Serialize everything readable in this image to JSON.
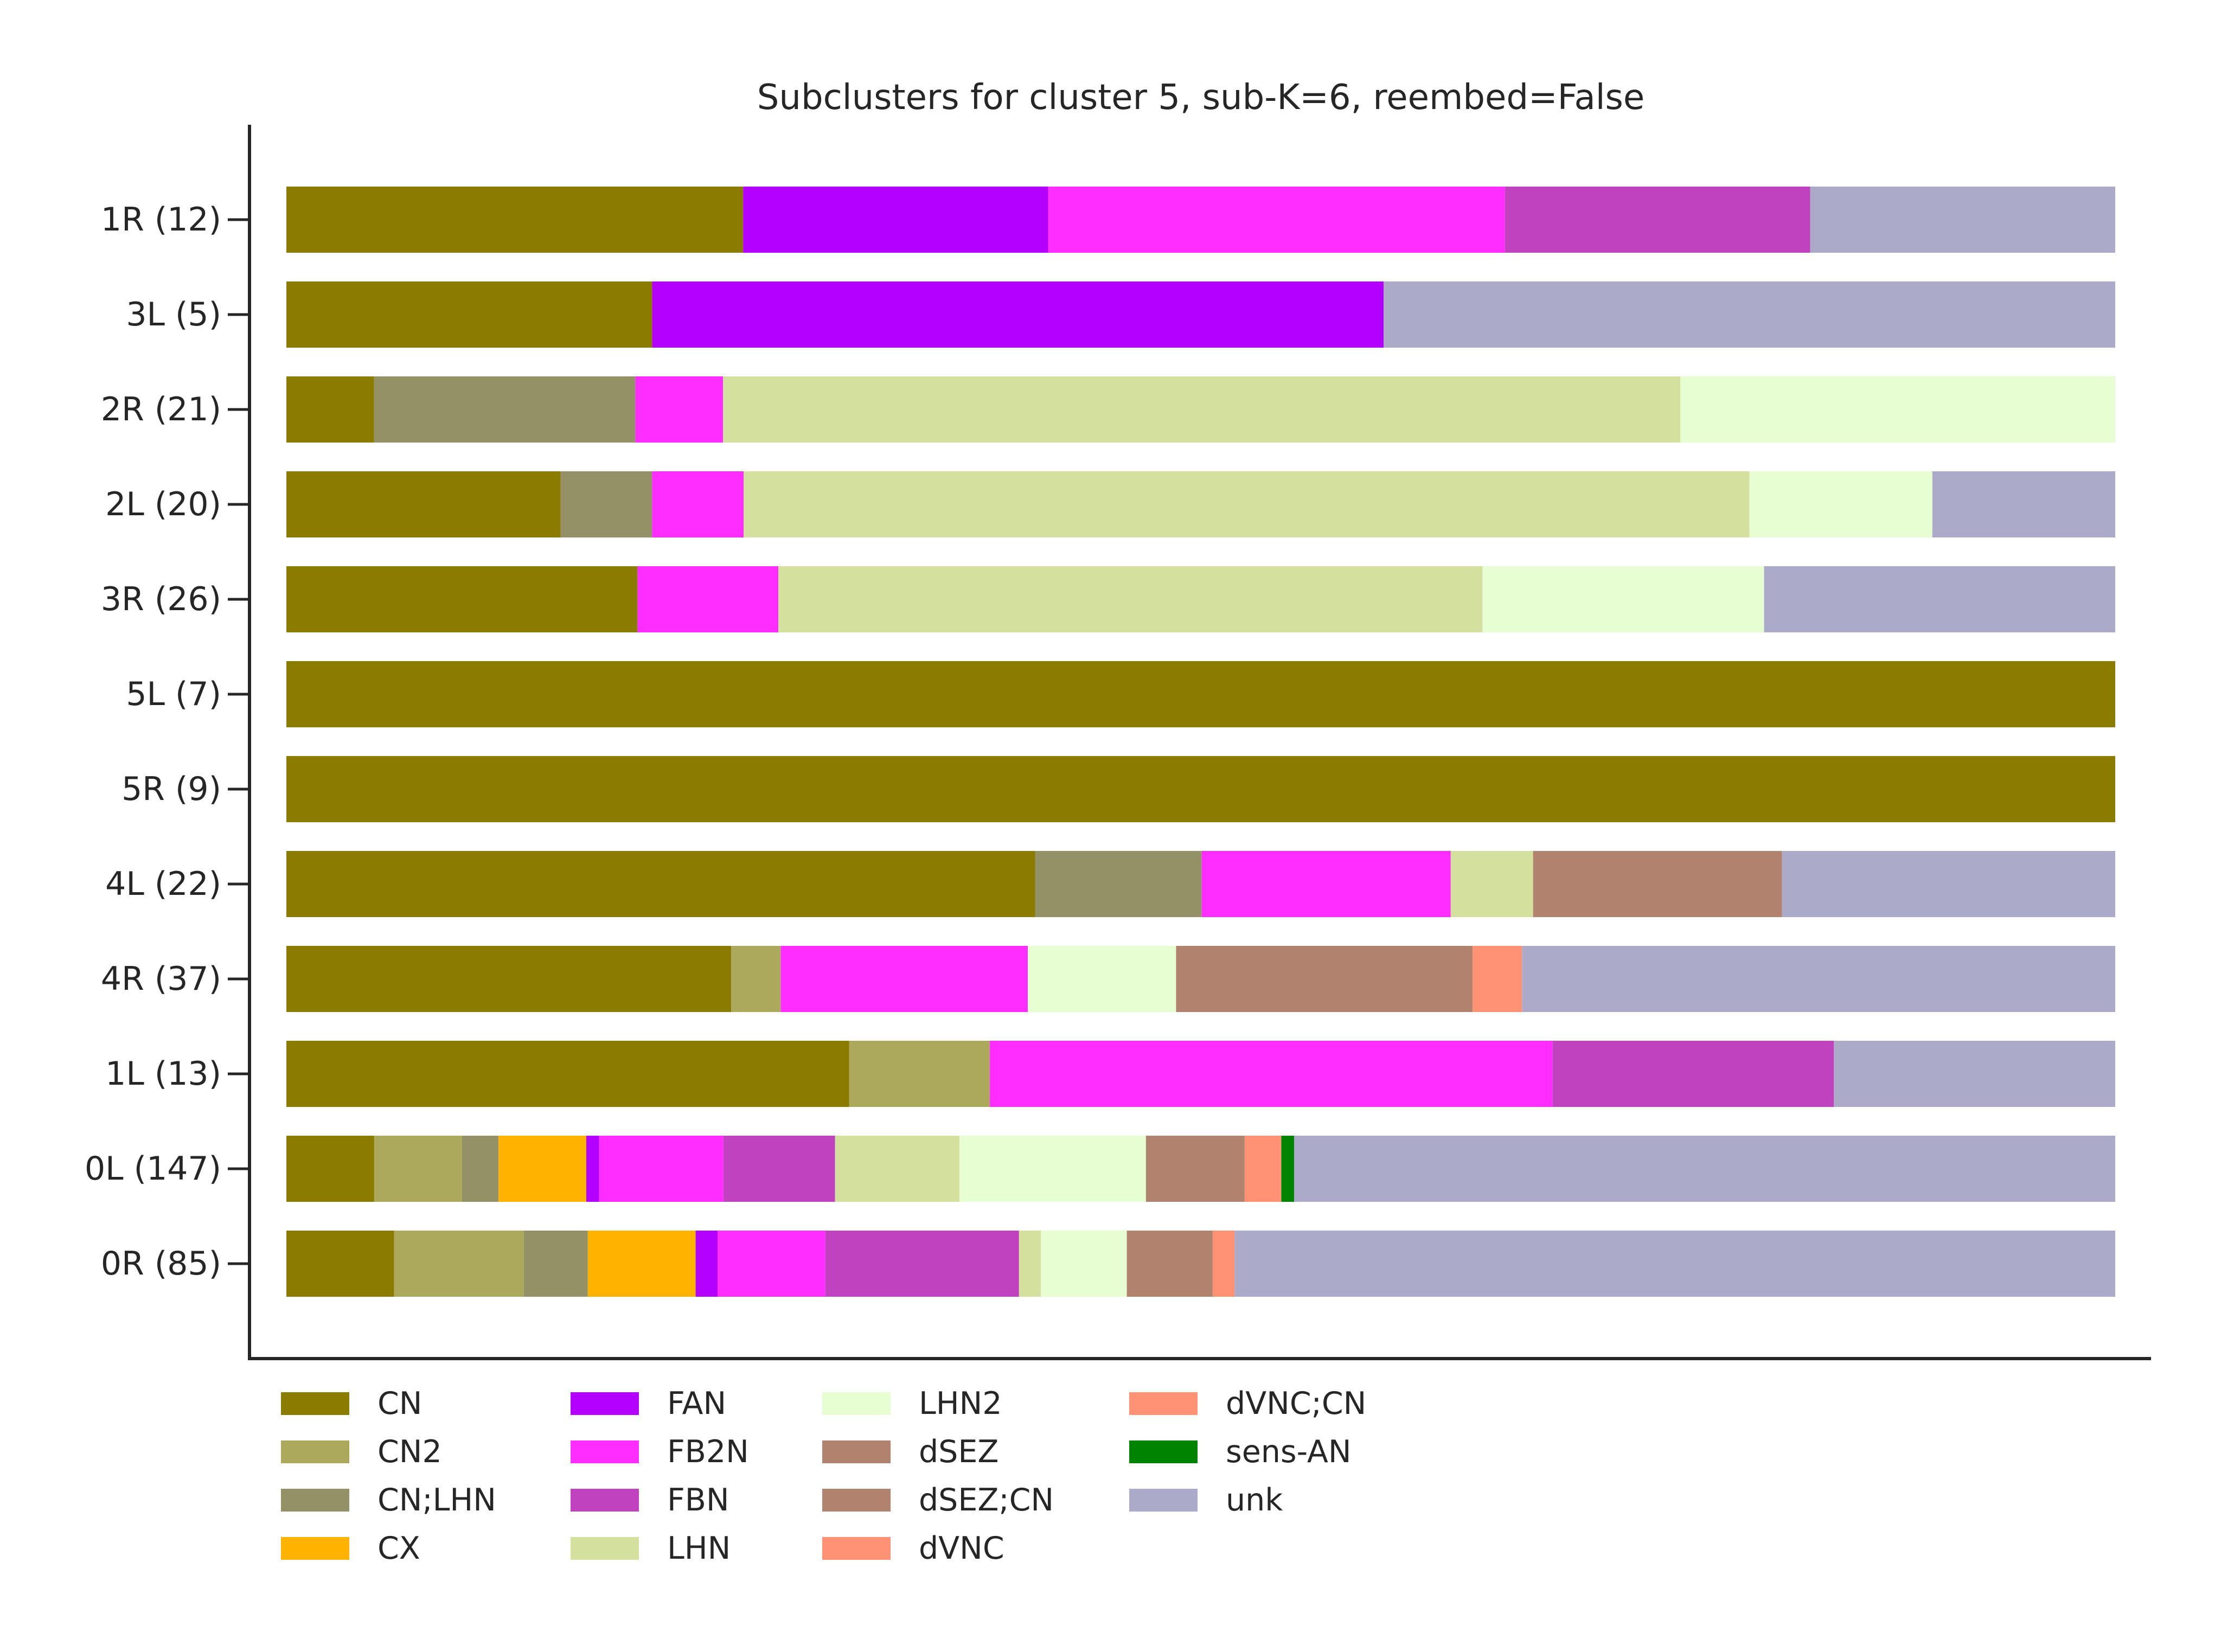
{
  "chart_data": {
    "type": "bar",
    "orientation": "horizontal",
    "stacked": true,
    "normalized": true,
    "title": "Subclusters for cluster 5, sub-K=6, reembed=False",
    "xlabel": "",
    "ylabel": "",
    "xlim": [
      0,
      1
    ],
    "grid": false,
    "legend_position": "bottom",
    "legend_columns": 4,
    "categories": [
      "1R (12)",
      "3L (5)",
      "2R (21)",
      "2L (20)",
      "3R (26)",
      "5L (7)",
      "5R (9)",
      "4L (22)",
      "4R (37)",
      "1L (13)",
      "0L (147)",
      "0R (85)"
    ],
    "series": [
      {
        "name": "CN",
        "color": "#8b7b00",
        "values": [
          0.25,
          0.2,
          0.048,
          0.15,
          0.192,
          1.0,
          1.0,
          0.409,
          0.243,
          0.308,
          0.048,
          0.059
        ]
      },
      {
        "name": "CN2",
        "color": "#aca85c",
        "values": [
          0,
          0,
          0,
          0,
          0,
          0,
          0,
          0,
          0.027,
          0.077,
          0.048,
          0.071
        ]
      },
      {
        "name": "CN;LHN",
        "color": "#959166",
        "values": [
          0,
          0,
          0.143,
          0.05,
          0,
          0,
          0,
          0.091,
          0,
          0,
          0.02,
          0.035
        ]
      },
      {
        "name": "CX",
        "color": "#ffb300",
        "values": [
          0,
          0,
          0,
          0,
          0,
          0,
          0,
          0,
          0,
          0,
          0.048,
          0.059
        ]
      },
      {
        "name": "FAN",
        "color": "#b300ff",
        "values": [
          0.167,
          0.4,
          0,
          0,
          0,
          0,
          0,
          0,
          0,
          0,
          0.007,
          0.012
        ]
      },
      {
        "name": "FB2N",
        "color": "#ff2dff",
        "values": [
          0.25,
          0,
          0.048,
          0.05,
          0.077,
          0,
          0,
          0.136,
          0.135,
          0.308,
          0.068,
          0.059
        ]
      },
      {
        "name": "FBN",
        "color": "#c142bf",
        "values": [
          0.167,
          0,
          0,
          0,
          0,
          0,
          0,
          0,
          0,
          0.154,
          0.061,
          0.106
        ]
      },
      {
        "name": "LHN",
        "color": "#d4e19e",
        "values": [
          0,
          0,
          0.524,
          0.55,
          0.385,
          0,
          0,
          0.045,
          0,
          0,
          0.068,
          0.012
        ]
      },
      {
        "name": "LHN2",
        "color": "#e7fdd2",
        "values": [
          0,
          0,
          0.238,
          0.1,
          0.154,
          0,
          0,
          0,
          0.081,
          0,
          0.102,
          0.047
        ]
      },
      {
        "name": "dSEZ",
        "color": "#b1836f",
        "values": [
          0,
          0,
          0,
          0,
          0,
          0,
          0,
          0.136,
          0.162,
          0,
          0.054,
          0.047
        ]
      },
      {
        "name": "dSEZ;CN",
        "color": "#b1836f",
        "values": [
          0,
          0,
          0,
          0,
          0,
          0,
          0,
          0,
          0,
          0,
          0,
          0
        ]
      },
      {
        "name": "dVNC",
        "color": "#ff9174",
        "values": [
          0,
          0,
          0,
          0,
          0,
          0,
          0,
          0,
          0.027,
          0,
          0.02,
          0.012
        ]
      },
      {
        "name": "dVNC;CN",
        "color": "#ff9174",
        "values": [
          0,
          0,
          0,
          0,
          0,
          0,
          0,
          0,
          0,
          0,
          0,
          0
        ]
      },
      {
        "name": "sens-AN",
        "color": "#008300",
        "values": [
          0,
          0,
          0,
          0,
          0,
          0,
          0,
          0,
          0,
          0,
          0.007,
          0
        ]
      },
      {
        "name": "unk",
        "color": "#acaac9",
        "values": [
          0.167,
          0.4,
          0,
          0.1,
          0.192,
          0,
          0,
          0.182,
          0.324,
          0.154,
          0.449,
          0.482
        ]
      }
    ]
  }
}
